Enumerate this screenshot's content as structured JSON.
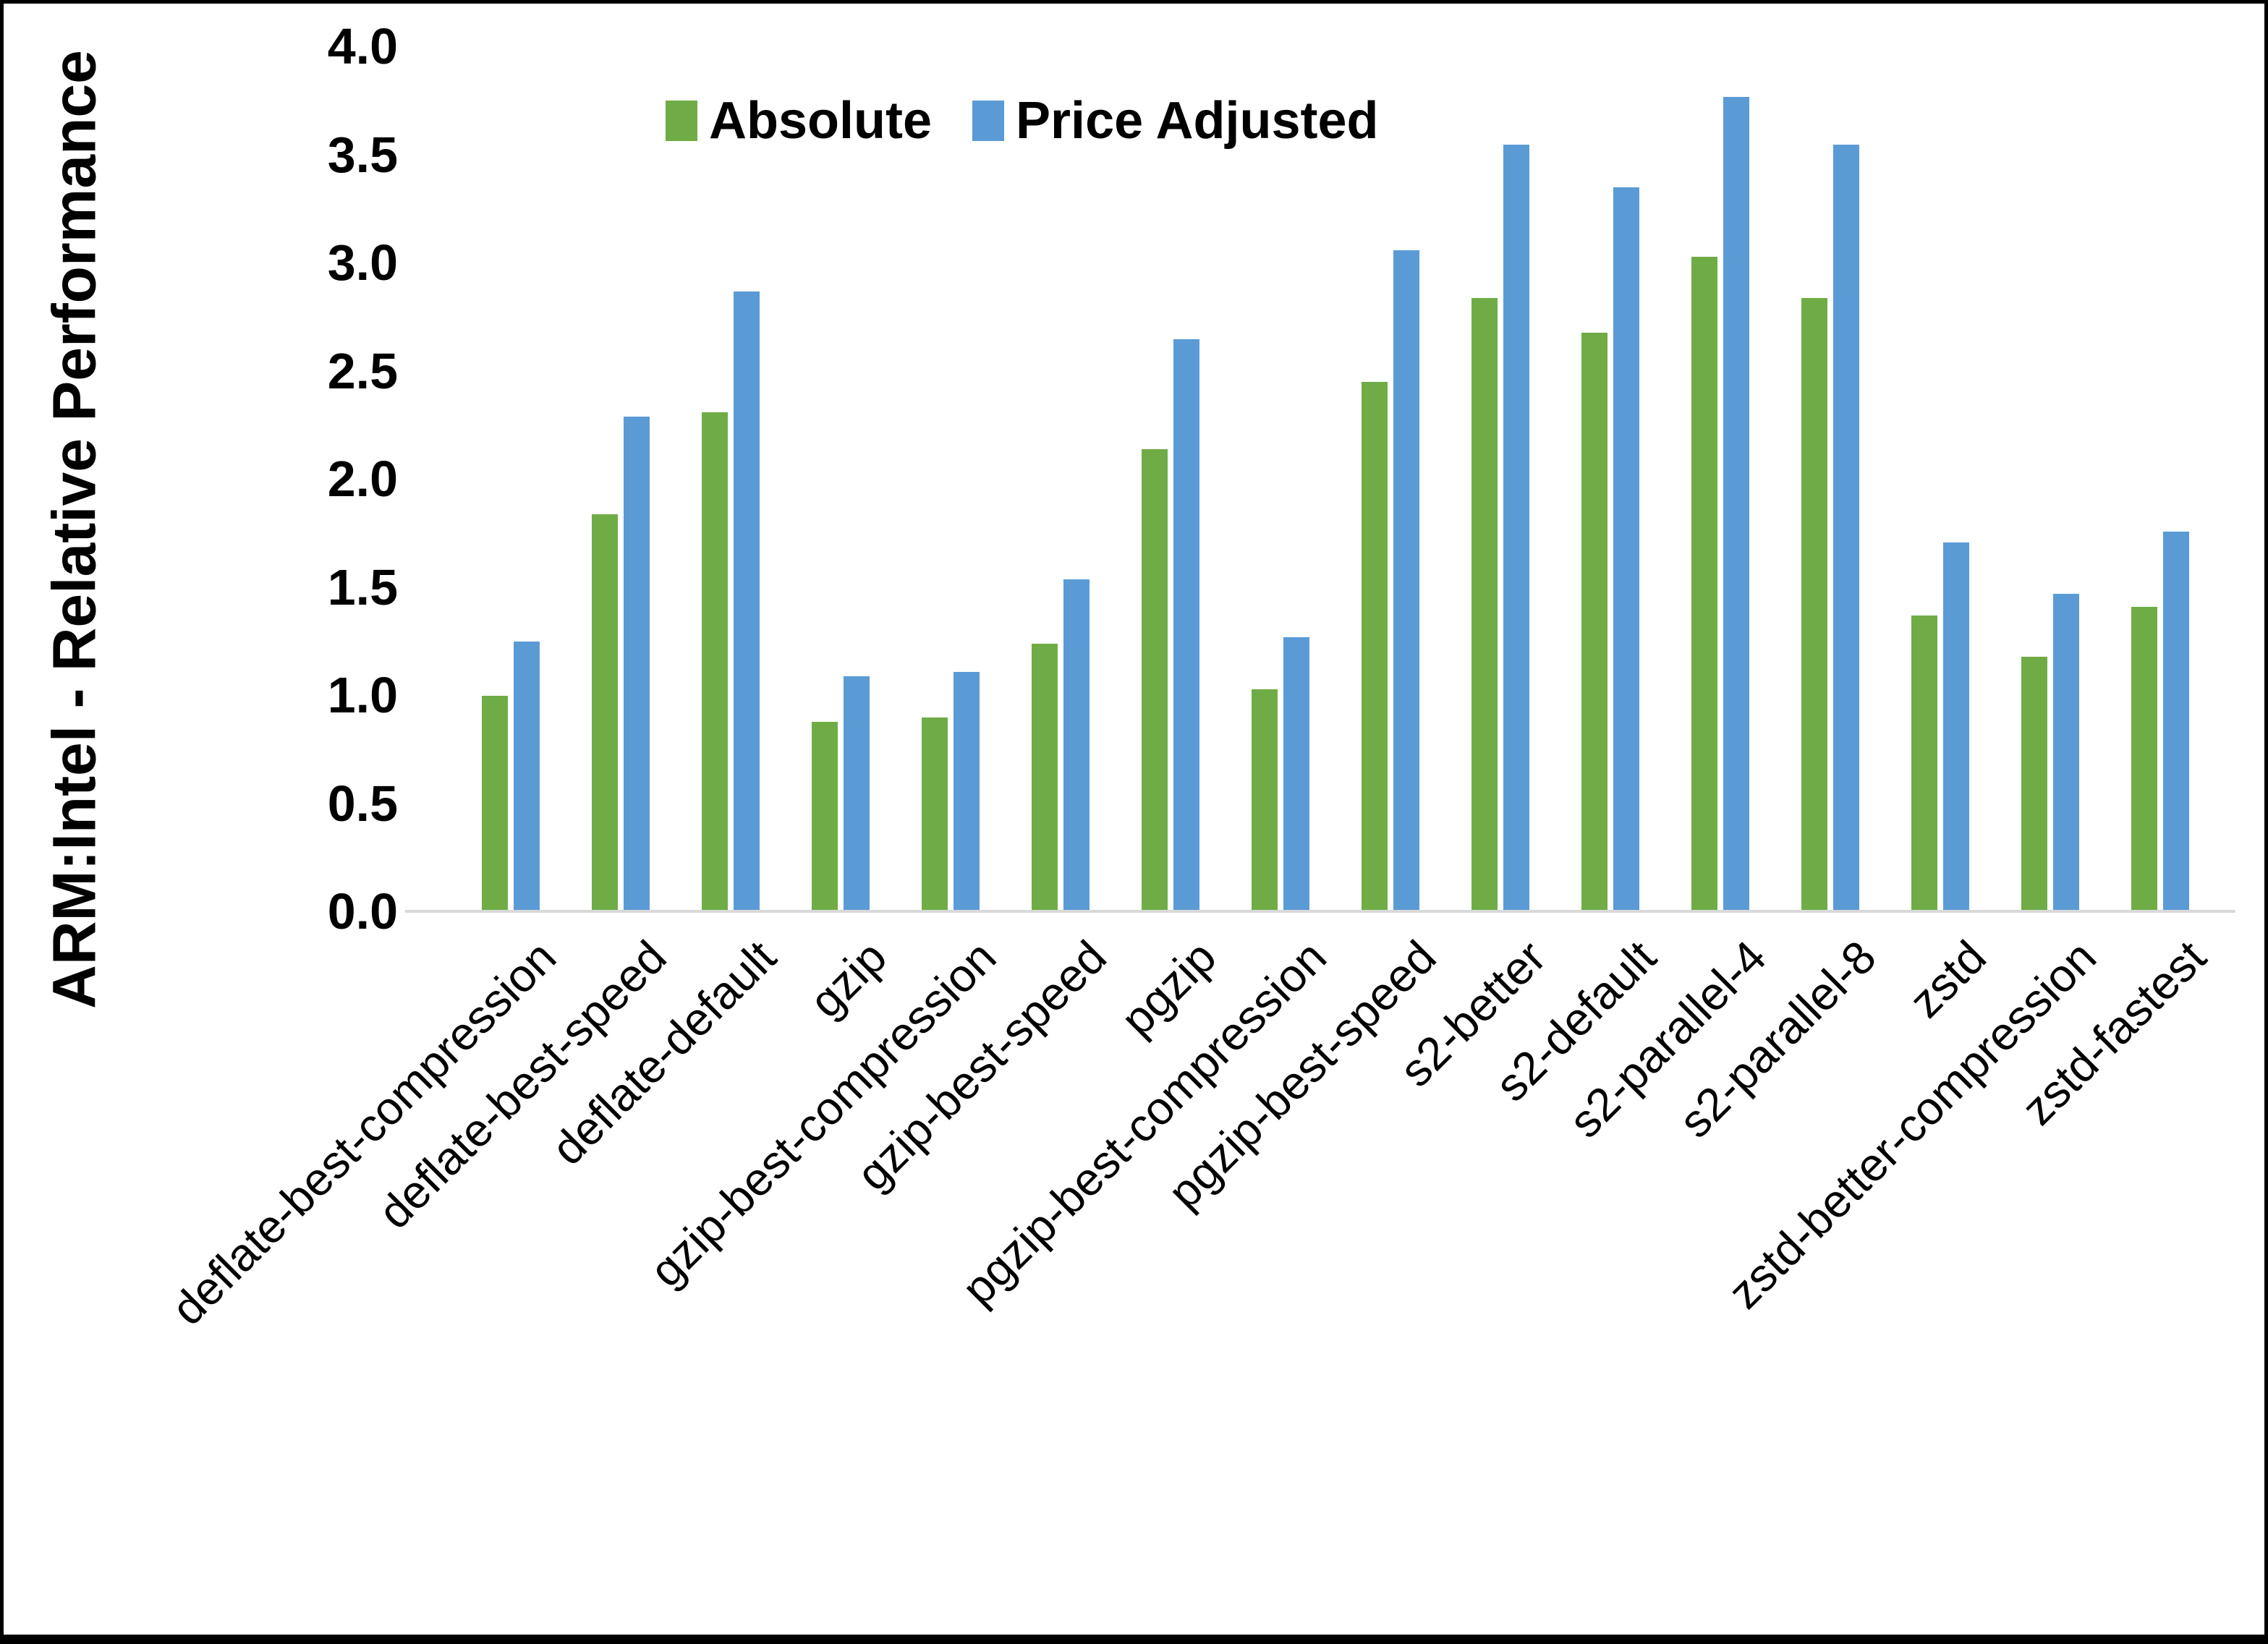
{
  "frame": {
    "border_color": "#000000",
    "background_color": "#ffffff",
    "axis_line_color": "#d9d9d9"
  },
  "chart_data": {
    "type": "bar",
    "title": "",
    "xlabel": "",
    "ylabel": "ARM:Intel - Relative Performance",
    "ylim": [
      0.0,
      4.0
    ],
    "yticks": [
      "4.0",
      "3.5",
      "3.0",
      "2.5",
      "2.0",
      "1.5",
      "1.0",
      "0.5",
      "0.0"
    ],
    "grid": false,
    "legend_position": "top-center",
    "categories": [
      "deflate-best-compression",
      "deflate-best-speed",
      "deflate-default",
      "gzip",
      "gzip-best-compression",
      "gzip-best-speed",
      "pgzip",
      "pgzip-best-compression",
      "pgzip-best-speed",
      "s2-better",
      "s2-default",
      "s2-parallel-4",
      "s2-parallel-8",
      "zstd",
      "zstd-better-compression",
      "zstd-fastest"
    ],
    "series": [
      {
        "name": "Absolute",
        "color": "#6FAC46",
        "values": [
          0.99,
          1.83,
          2.3,
          0.87,
          0.89,
          1.23,
          2.13,
          1.02,
          2.44,
          2.83,
          2.67,
          3.02,
          2.83,
          1.36,
          1.17,
          1.4
        ]
      },
      {
        "name": "Price Adjusted",
        "color": "#5B9BD5",
        "values": [
          1.24,
          2.28,
          2.86,
          1.08,
          1.1,
          1.53,
          2.64,
          1.26,
          3.05,
          3.54,
          3.34,
          3.76,
          3.54,
          1.7,
          1.46,
          1.75
        ]
      }
    ]
  }
}
